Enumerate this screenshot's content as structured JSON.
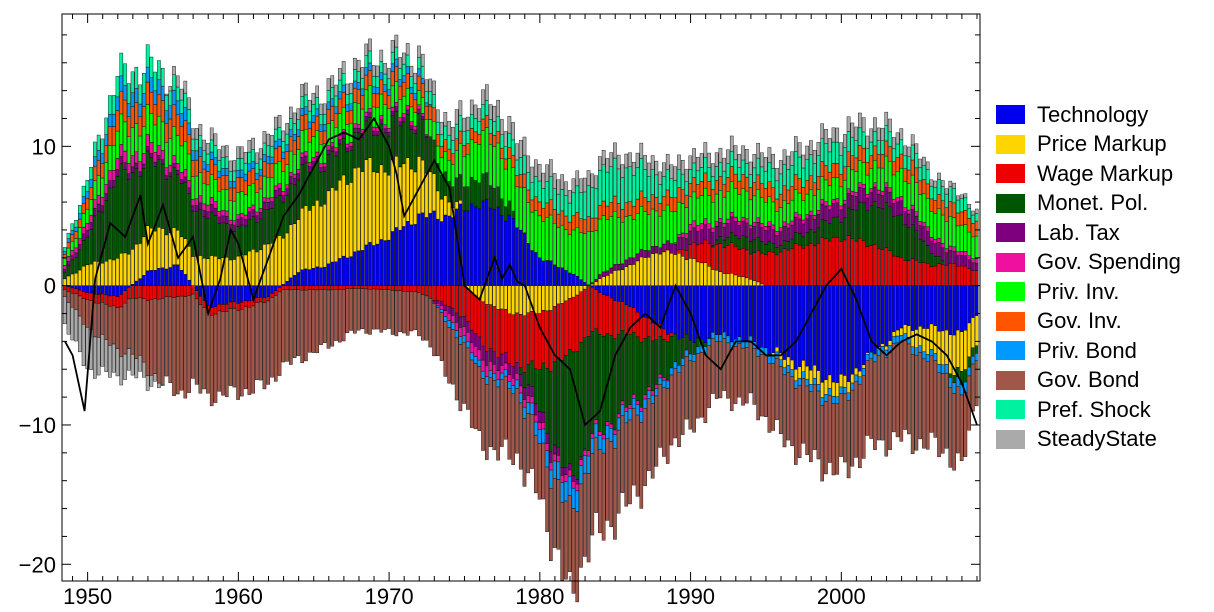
{
  "chart_data": {
    "type": "bar",
    "stacked": true,
    "title": "",
    "xlabel": "",
    "ylabel": "",
    "xlim": [
      1948.3,
      2009.2
    ],
    "ylim": [
      -21.2,
      19.5
    ],
    "x_ticks": [
      "1950",
      "1960",
      "1970",
      "1980",
      "1990",
      "2000"
    ],
    "y_ticks": [
      "-20",
      "-10",
      "0",
      "10"
    ],
    "grid": false,
    "legend_position": "right",
    "years": [
      1948.5,
      1950,
      1952,
      1954,
      1956,
      1958,
      1960,
      1962,
      1964,
      1966,
      1968,
      1970,
      1972,
      1974,
      1976,
      1978,
      1980,
      1982,
      1984,
      1986,
      1988,
      1990,
      1992,
      1994,
      1996,
      1998,
      2000,
      2002,
      2004,
      2006,
      2008,
      2009
    ],
    "series": [
      {
        "name": "Technology",
        "color": "#0000ee",
        "values": [
          0,
          -0.5,
          -0.8,
          1.0,
          1.5,
          -1.5,
          -1.2,
          -0.8,
          1.0,
          1.5,
          2.5,
          3.5,
          5.0,
          5.0,
          6.0,
          5.0,
          2.0,
          1.0,
          -0.5,
          -1.5,
          -3.0,
          -4.0,
          -3.5,
          -4.0,
          -5.0,
          -6.0,
          -7.0,
          -5.0,
          -3.0,
          -3.0,
          -3.5,
          -2.0
        ]
      },
      {
        "name": "Price Markup",
        "color": "#ffd500",
        "values": [
          0.5,
          1.5,
          2.0,
          3.0,
          2.5,
          2.0,
          2.0,
          3.0,
          4.0,
          5.0,
          6.0,
          5.0,
          4.0,
          1.0,
          -1.0,
          -2.0,
          -2.0,
          -1.0,
          0.5,
          1.5,
          2.5,
          2.0,
          1.0,
          0.5,
          -0.5,
          -1.0,
          -1.0,
          0,
          -0.5,
          -2.0,
          -3.0,
          -2.0
        ]
      },
      {
        "name": "Wage Markup",
        "color": "#ee0000",
        "values": [
          -0.3,
          -0.5,
          -0.8,
          -1.0,
          -0.8,
          -0.5,
          -0.5,
          -0.3,
          -0.3,
          -0.3,
          -0.2,
          -0.3,
          -0.5,
          -1.5,
          -3.0,
          -3.5,
          -4.0,
          -4.0,
          -3.0,
          -2.0,
          -1.0,
          1.0,
          2.0,
          2.0,
          2.5,
          3.0,
          3.5,
          3.0,
          2.0,
          1.5,
          1.5,
          1.0
        ]
      },
      {
        "name": "Monet. Pol.",
        "color": "#005500",
        "values": [
          0.5,
          2.0,
          6.0,
          5.0,
          4.0,
          3.0,
          2.0,
          2.5,
          3.0,
          2.5,
          2.5,
          3.0,
          3.0,
          1.5,
          2.0,
          1.0,
          -3.0,
          -9.0,
          -7.0,
          -5.0,
          -3.0,
          -1.0,
          0.5,
          1.0,
          0.5,
          1.0,
          1.5,
          3.0,
          3.0,
          1.0,
          -1.0,
          -0.5
        ]
      },
      {
        "name": "Lab. Tax",
        "color": "#7f007f",
        "values": [
          0.2,
          0.5,
          0.5,
          0.3,
          0.3,
          0.5,
          0.5,
          0.5,
          0.5,
          0.3,
          0.3,
          0.3,
          0.3,
          -0.5,
          -1.0,
          -0.8,
          -0.8,
          -0.5,
          0.3,
          0.5,
          0.5,
          1.0,
          1.0,
          1.0,
          1.0,
          1.0,
          1.0,
          1.0,
          1.0,
          1.0,
          0.8,
          0.5
        ]
      },
      {
        "name": "Gov. Spending",
        "color": "#f0109f",
        "values": [
          0.3,
          0.5,
          0.8,
          0.8,
          0.5,
          0.5,
          0.3,
          0.3,
          0.3,
          0.3,
          0.3,
          0.3,
          0.3,
          -0.5,
          -0.8,
          -0.5,
          -0.5,
          -0.5,
          -0.3,
          -0.3,
          -0.3,
          0.5,
          0.3,
          0.3,
          0.3,
          0.3,
          0.3,
          0.3,
          0.3,
          0.3,
          0.3,
          0.3
        ]
      },
      {
        "name": "Priv. Inv.",
        "color": "#00ff00",
        "values": [
          0.5,
          1.0,
          2.0,
          2.0,
          2.0,
          1.5,
          1.5,
          1.5,
          1.5,
          1.5,
          1.5,
          1.5,
          1.0,
          1.5,
          3.0,
          3.0,
          3.0,
          3.0,
          4.0,
          3.0,
          2.5,
          2.0,
          2.0,
          2.0,
          1.5,
          1.5,
          1.5,
          1.5,
          2.0,
          2.0,
          2.0,
          1.5
        ]
      },
      {
        "name": "Gov. Inv.",
        "color": "#ff5500",
        "values": [
          0.3,
          0.8,
          1.5,
          1.5,
          1.5,
          1.0,
          1.0,
          1.0,
          1.0,
          1.0,
          1.0,
          1.0,
          1.0,
          0.8,
          0.8,
          0.8,
          1.0,
          1.0,
          1.0,
          1.0,
          1.0,
          1.0,
          1.0,
          1.0,
          1.0,
          1.0,
          1.0,
          1.0,
          1.0,
          1.0,
          1.0,
          1.0
        ]
      },
      {
        "name": "Priv. Bond",
        "color": "#0099ff",
        "values": [
          0.2,
          0.5,
          1.0,
          1.0,
          1.0,
          0.5,
          0.5,
          0.5,
          0.5,
          0.5,
          0.5,
          0.5,
          0.5,
          -0.5,
          -0.5,
          -0.5,
          -1.0,
          -1.5,
          -1.0,
          -0.8,
          -0.5,
          -0.5,
          -0.5,
          -0.5,
          -0.5,
          -0.5,
          -0.5,
          -0.5,
          -0.5,
          -0.5,
          -0.8,
          -0.5
        ]
      },
      {
        "name": "Gov. Bond",
        "color": "#a0574a",
        "values": [
          -0.5,
          -2.0,
          -3.0,
          -5.0,
          -7.0,
          -6.0,
          -6.0,
          -6.0,
          -5.0,
          -4.0,
          -3.0,
          -3.0,
          -3.0,
          -4.0,
          -5.0,
          -5.0,
          -4.0,
          -6.0,
          -6.0,
          -6.0,
          -5.0,
          -5.0,
          -4.0,
          -4.0,
          -5.0,
          -5.0,
          -5.0,
          -6.0,
          -7.0,
          -6.0,
          -5.0,
          -3.0
        ]
      },
      {
        "name": "Pref. Shock",
        "color": "#00f2a0",
        "values": [
          0.3,
          0.8,
          1.5,
          1.5,
          1.0,
          0.8,
          0.8,
          0.8,
          0.8,
          0.8,
          0.8,
          0.8,
          0.8,
          1.0,
          1.0,
          1.0,
          1.5,
          1.5,
          2.5,
          2.5,
          1.5,
          1.0,
          1.0,
          1.0,
          1.5,
          1.5,
          1.5,
          1.0,
          1.0,
          1.0,
          1.0,
          0.5
        ]
      },
      {
        "name": "SteadyState",
        "color": "#aaaaaa",
        "values": [
          -2.0,
          -3.0,
          -2.0,
          -1.0,
          0.8,
          0.8,
          0.8,
          0.8,
          0.8,
          0.8,
          0.8,
          0.8,
          0.8,
          1.0,
          1.0,
          1.2,
          1.2,
          1.0,
          1.0,
          1.0,
          1.0,
          1.0,
          1.0,
          1.0,
          1.0,
          1.0,
          1.0,
          1.0,
          0.8,
          0.5,
          0.3,
          0.3
        ]
      }
    ],
    "line": {
      "name": "",
      "color": "#000000",
      "points": [
        [
          1948.5,
          -4
        ],
        [
          1949,
          -5
        ],
        [
          1949.8,
          -9
        ],
        [
          1950.5,
          0.5
        ],
        [
          1951.5,
          4.5
        ],
        [
          1952.5,
          3.5
        ],
        [
          1953.5,
          6.5
        ],
        [
          1954,
          3
        ],
        [
          1955,
          5.8
        ],
        [
          1956,
          2
        ],
        [
          1957,
          3.5
        ],
        [
          1958,
          -2
        ],
        [
          1958.8,
          0.5
        ],
        [
          1959.5,
          4
        ],
        [
          1960,
          3
        ],
        [
          1961,
          -1
        ],
        [
          1962,
          2
        ],
        [
          1963,
          5
        ],
        [
          1964,
          6.5
        ],
        [
          1965,
          8.5
        ],
        [
          1966,
          10.5
        ],
        [
          1967,
          11
        ],
        [
          1968,
          10.5
        ],
        [
          1969,
          12
        ],
        [
          1970,
          10
        ],
        [
          1970.5,
          8
        ],
        [
          1971,
          5
        ],
        [
          1972,
          7
        ],
        [
          1973,
          9
        ],
        [
          1974,
          7
        ],
        [
          1975,
          0
        ],
        [
          1976,
          -1
        ],
        [
          1977,
          2
        ],
        [
          1977.5,
          0.5
        ],
        [
          1978,
          1.5
        ],
        [
          1978.5,
          0.3
        ],
        [
          1979,
          0
        ],
        [
          1980,
          -3
        ],
        [
          1981,
          -5
        ],
        [
          1982,
          -6
        ],
        [
          1983,
          -10
        ],
        [
          1984,
          -9
        ],
        [
          1985,
          -5
        ],
        [
          1986,
          -3
        ],
        [
          1987,
          -2
        ],
        [
          1988,
          -3
        ],
        [
          1989,
          0
        ],
        [
          1990,
          -2
        ],
        [
          1991,
          -5
        ],
        [
          1992,
          -6
        ],
        [
          1993,
          -4
        ],
        [
          1994,
          -4
        ],
        [
          1995,
          -5
        ],
        [
          1996,
          -5
        ],
        [
          1997,
          -4
        ],
        [
          1998,
          -2
        ],
        [
          1999,
          0
        ],
        [
          2000,
          1.2
        ],
        [
          2001,
          -1
        ],
        [
          2002,
          -4
        ],
        [
          2003,
          -5
        ],
        [
          2004,
          -4
        ],
        [
          2005,
          -3.5
        ],
        [
          2006,
          -4
        ],
        [
          2007,
          -5
        ],
        [
          2008,
          -7
        ],
        [
          2009,
          -10
        ]
      ]
    }
  }
}
